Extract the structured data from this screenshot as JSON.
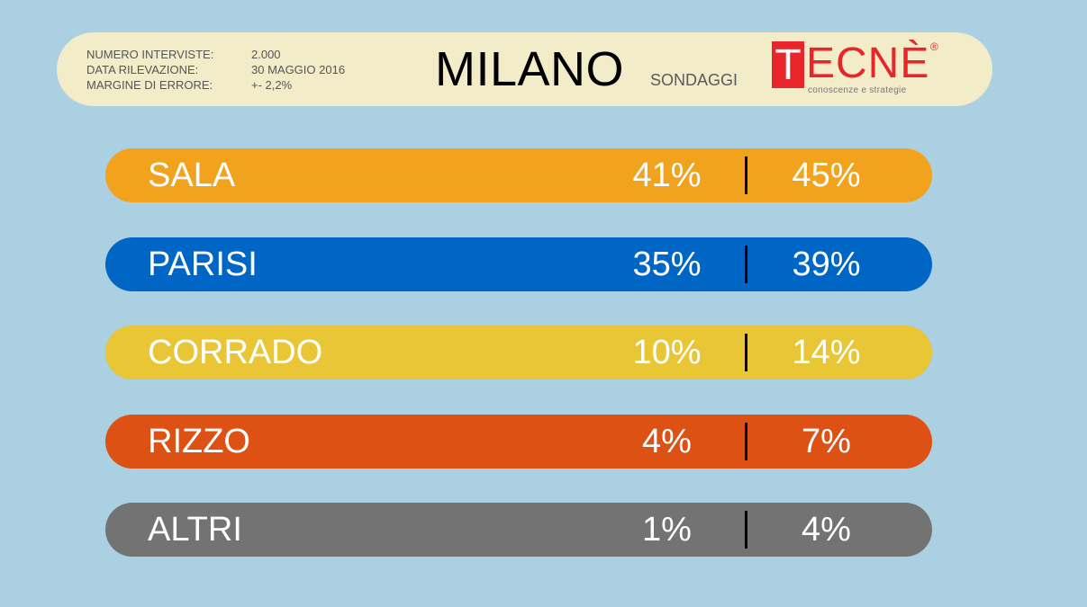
{
  "header": {
    "meta": [
      {
        "label": "NUMERO INTERVISTE:",
        "value": "2.000"
      },
      {
        "label": "DATA RILEVAZIONE:",
        "value": "30 MAGGIO 2016"
      },
      {
        "label": "MARGINE DI ERRORE:",
        "value": "+- 2,2%"
      }
    ],
    "title": "MILANO",
    "subtitle": "SONDAGGI",
    "logo": {
      "box_letter": "T",
      "word": "ECNÈ",
      "reg": "®",
      "tagline": "conoscenze e strategie"
    }
  },
  "chart_data": {
    "type": "table",
    "title": "MILANO",
    "subtitle": "SONDAGGI",
    "rows": [
      {
        "name": "SALA",
        "low": "41%",
        "high": "45%",
        "color": "#f2a31d"
      },
      {
        "name": "PARISI",
        "low": "35%",
        "high": "39%",
        "color": "#0066c6"
      },
      {
        "name": "CORRADO",
        "low": "10%",
        "high": "14%",
        "color": "#e9c636"
      },
      {
        "name": "RIZZO",
        "low": "4%",
        "high": "7%",
        "color": "#de5114"
      },
      {
        "name": "ALTRI",
        "low": "1%",
        "high": "4%",
        "color": "#737373"
      }
    ]
  }
}
